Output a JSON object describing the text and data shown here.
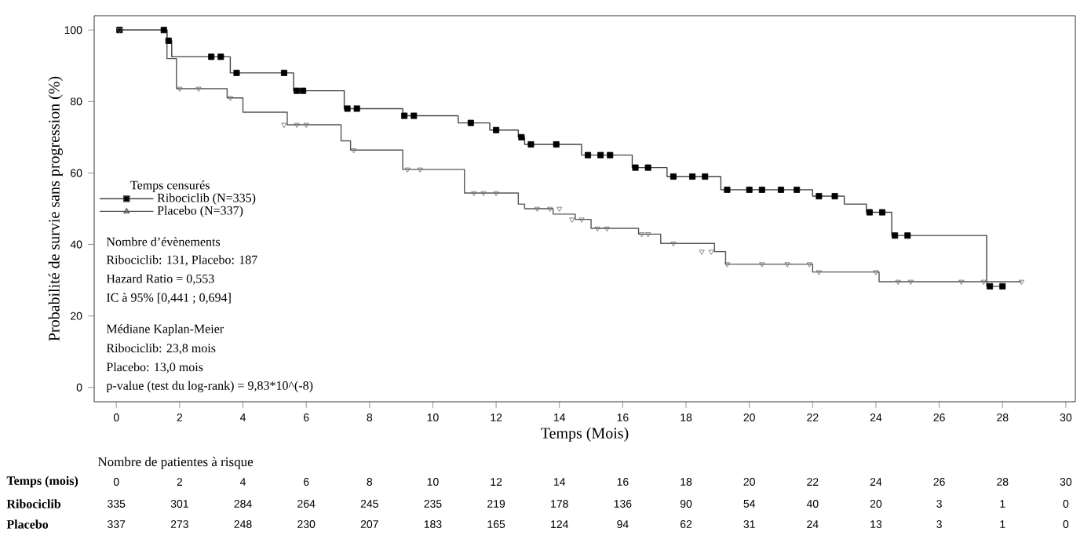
{
  "chart_data": {
    "type": "step",
    "xlabel": "Temps (Mois)",
    "ylabel": "Probabilité de survie sans progression (%)",
    "legend_title": "Temps censurés",
    "legend": "left",
    "xlim": [
      -0.7,
      30.3
    ],
    "ylim": [
      -4,
      104
    ],
    "xticks": [
      0,
      2,
      4,
      6,
      8,
      10,
      12,
      14,
      16,
      18,
      20,
      22,
      24,
      26,
      28,
      30
    ],
    "yticks": [
      0,
      20,
      40,
      60,
      80,
      100
    ],
    "series": [
      {
        "name": "Ribociclib (N=335)",
        "color": "#444444",
        "x": [
          0,
          1.6,
          1.75,
          3.6,
          5.6,
          7.2,
          9.05,
          10.8,
          11.8,
          12.7,
          12.9,
          14.7,
          16.3,
          17.4,
          19.1,
          22.0,
          23.0,
          23.7,
          24.5,
          27.5,
          28.0
        ],
        "values": [
          100,
          97,
          92.5,
          88,
          83,
          78,
          76,
          74,
          72,
          70,
          68,
          65,
          61.5,
          59,
          55.3,
          53.5,
          51.3,
          49,
          42.5,
          28.3,
          28.3
        ]
      },
      {
        "name": "Placebo (N=337)",
        "color": "#555555",
        "x": [
          0,
          1.6,
          1.9,
          3.5,
          4.0,
          5.4,
          7.1,
          7.4,
          9.05,
          11.0,
          12.7,
          12.9,
          13.8,
          14.5,
          15.0,
          16.5,
          17.2,
          18.9,
          19.25,
          22.0,
          24.1,
          28.6
        ],
        "values": [
          100,
          92,
          83.6,
          81,
          77,
          73.5,
          69,
          66.4,
          61,
          54.4,
          51.3,
          50,
          48.5,
          47,
          44.5,
          42.9,
          40.3,
          38,
          34.5,
          32.3,
          29.6,
          29.6
        ]
      },
      {
        "type": "scatter",
        "color": "#000000",
        "marker": "square",
        "x": [
          0.1,
          1.5,
          1.65,
          3.0,
          3.3,
          3.8,
          5.3,
          5.7,
          5.9,
          7.3,
          7.6,
          9.1,
          9.4,
          11.2,
          12.0,
          12.8,
          13.1,
          13.9,
          14.9,
          15.3,
          15.6,
          16.4,
          16.8,
          17.6,
          18.2,
          18.6,
          19.3,
          20.0,
          20.4,
          21.0,
          21.5,
          22.2,
          22.7,
          23.8,
          24.2,
          24.6,
          25.0,
          27.6,
          28.0
        ],
        "values": [
          100,
          100,
          97,
          92.5,
          92.5,
          88,
          88,
          83,
          83,
          78,
          78,
          76,
          76,
          74,
          72,
          70,
          68,
          68,
          65,
          65,
          65,
          61.5,
          61.5,
          59,
          59,
          59,
          55.3,
          55.3,
          55.3,
          55.3,
          55.3,
          53.5,
          53.5,
          49,
          49,
          42.5,
          42.5,
          28.3,
          28.3
        ]
      },
      {
        "type": "scatter",
        "color": "#666666",
        "marker": "triangle",
        "x": [
          0.1,
          2.0,
          2.6,
          3.6,
          5.3,
          5.7,
          6.0,
          7.5,
          9.2,
          9.6,
          11.3,
          11.6,
          12.0,
          13.3,
          13.7,
          14.0,
          14.4,
          14.7,
          15.2,
          15.5,
          16.6,
          16.8,
          17.6,
          18.5,
          18.8,
          19.3,
          20.4,
          21.2,
          21.9,
          22.2,
          24.0,
          24.7,
          25.1,
          26.7,
          27.4,
          28.6
        ],
        "values": [
          100,
          83.6,
          83.6,
          81,
          73.5,
          73.5,
          73.5,
          66.4,
          61,
          61,
          54.4,
          54.4,
          54.4,
          50,
          50,
          50,
          47,
          47,
          44.5,
          44.5,
          42.9,
          42.9,
          40.3,
          38,
          38,
          34.5,
          34.5,
          34.5,
          34.5,
          32.3,
          32.3,
          29.6,
          29.6,
          29.6,
          29.6,
          29.6
        ]
      }
    ],
    "annotations": [
      "Nombre d’évènements",
      "Ribociclib: 131, Placebo: 187",
      "Hazard Ratio = 0,553",
      "IC à 95% [0,441 ; 0,694]",
      "Médiane Kaplan-Meier",
      "Ribociclib: 23,8 mois",
      "Placebo: 13,0 mois",
      "p-value (test du log-rank) = 9,83*10^(-8)",
      "Nombre de patientes à risque",
      "Temps (mois)",
      "0",
      "2",
      "4",
      "6",
      "8",
      "10",
      "12",
      "14",
      "16",
      "18",
      "20",
      "22",
      "24",
      "26",
      "28",
      "30",
      "Ribociclib",
      "335",
      "301",
      "284",
      "264",
      "245",
      "235",
      "219",
      "178",
      "136",
      "90",
      "54",
      "40",
      "20",
      "3",
      "1",
      "0",
      "Placebo",
      "337",
      "273",
      "248",
      "230",
      "207",
      "183",
      "165",
      "124",
      "94",
      "62",
      "31",
      "24",
      "13",
      "3",
      "1",
      "0"
    ]
  }
}
